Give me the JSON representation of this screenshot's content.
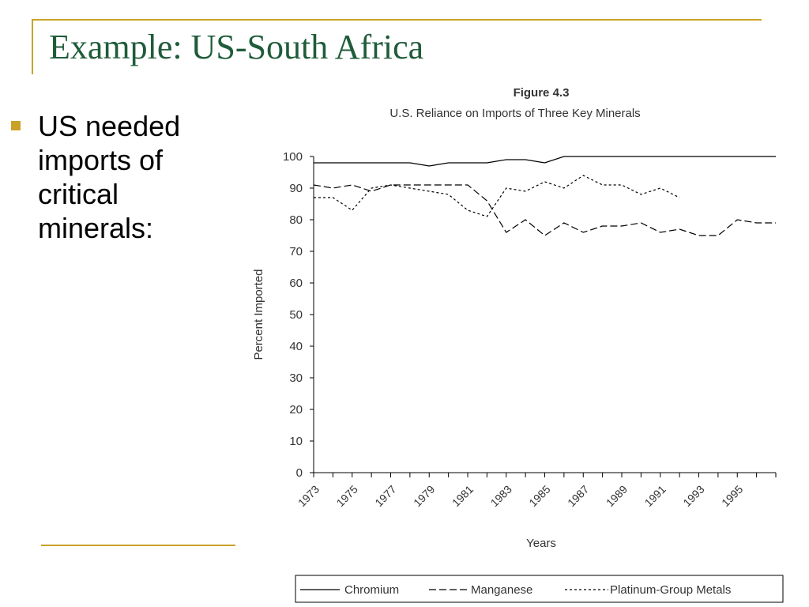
{
  "slide": {
    "title": "Example: US-South Africa",
    "bullets": [
      "US needed imports of critical minerals:"
    ]
  },
  "colors": {
    "accent": "#C9A227",
    "title": "#1F5C3A",
    "text": "#000000",
    "chart_line": "#000000",
    "chart_text": "#333333"
  },
  "chart_data": {
    "type": "line",
    "title": "Figure 4.3",
    "subtitle": "U.S. Reliance on Imports of Three Key Minerals",
    "xlabel": "Years",
    "ylabel": "Percent Imported",
    "xlim": [
      1973,
      1997
    ],
    "ylim": [
      0,
      100
    ],
    "yticks": [
      0,
      10,
      20,
      30,
      40,
      50,
      60,
      70,
      80,
      90,
      100
    ],
    "xtick_labels": [
      "1973",
      "1975",
      "1977",
      "1979",
      "1981",
      "1983",
      "1985",
      "1987",
      "1989",
      "1991",
      "1993",
      "1995"
    ],
    "grid": false,
    "legend": "bottom",
    "series": [
      {
        "name": "Chromium",
        "style": "solid",
        "x": [
          1973,
          1974,
          1975,
          1976,
          1977,
          1978,
          1979,
          1980,
          1981,
          1982,
          1983,
          1984,
          1985,
          1986,
          1987,
          1988,
          1989,
          1990,
          1991,
          1992,
          1993,
          1994,
          1995,
          1996,
          1997
        ],
        "y": [
          98,
          98,
          98,
          98,
          98,
          98,
          97,
          98,
          98,
          98,
          99,
          99,
          98,
          100,
          100,
          100,
          100,
          100,
          100,
          100,
          100,
          100,
          100,
          100,
          100
        ]
      },
      {
        "name": "Manganese",
        "style": "dashed",
        "x": [
          1973,
          1974,
          1975,
          1976,
          1977,
          1978,
          1979,
          1980,
          1981,
          1982,
          1983,
          1984,
          1985,
          1986,
          1987,
          1988,
          1989,
          1990,
          1991,
          1992,
          1993,
          1994,
          1995,
          1996,
          1997
        ],
        "y": [
          91,
          90,
          91,
          89,
          91,
          91,
          91,
          91,
          91,
          86,
          76,
          80,
          75,
          79,
          76,
          78,
          78,
          79,
          76,
          77,
          75,
          75,
          80,
          79,
          79
        ]
      },
      {
        "name": "Platinum-Group Metals",
        "style": "dotted",
        "x": [
          1973,
          1974,
          1975,
          1976,
          1977,
          1978,
          1979,
          1980,
          1981,
          1982,
          1983,
          1984,
          1985,
          1986,
          1987,
          1988,
          1989,
          1990,
          1991,
          1992
        ],
        "y": [
          87,
          87,
          83,
          90,
          91,
          90,
          89,
          88,
          83,
          81,
          90,
          89,
          92,
          90,
          94,
          91,
          91,
          88,
          90,
          87
        ]
      }
    ]
  }
}
